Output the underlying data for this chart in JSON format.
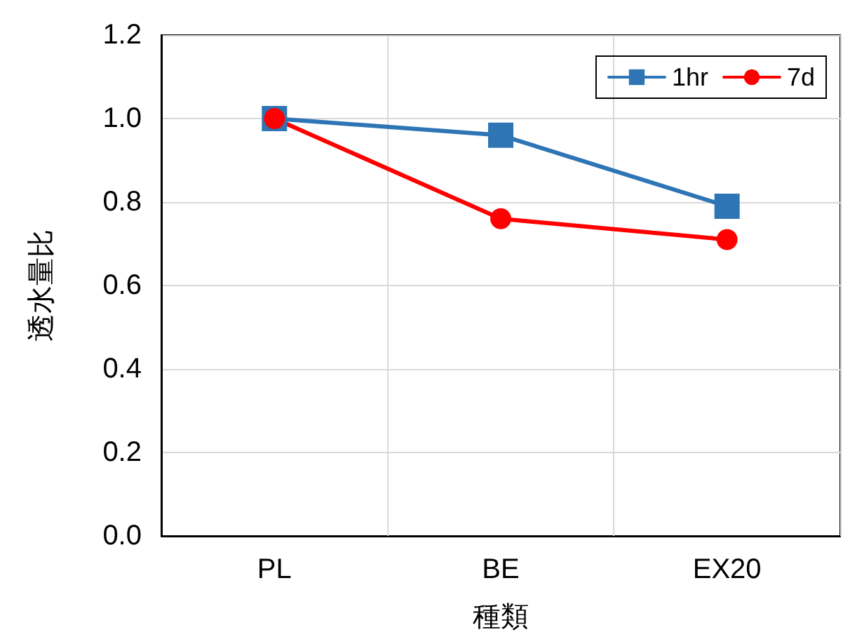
{
  "chart_data": {
    "type": "line",
    "xlabel": "種類",
    "ylabel": "透水量比",
    "categories": [
      "PL",
      "BE",
      "EX20"
    ],
    "series": [
      {
        "name": "1hr",
        "color": "#2e75b6",
        "marker": "square",
        "values": [
          1.0,
          0.96,
          0.79
        ]
      },
      {
        "name": "7d",
        "color": "#ff0000",
        "marker": "circle",
        "values": [
          1.0,
          0.76,
          0.71
        ]
      }
    ],
    "ylim": [
      0,
      1.2
    ],
    "yticks": [
      {
        "value": 0,
        "label": "0.0"
      },
      {
        "value": 0.2,
        "label": "0.2"
      },
      {
        "value": 0.4,
        "label": "0.4"
      },
      {
        "value": 0.6,
        "label": "0.6"
      },
      {
        "value": 0.8,
        "label": "0.8"
      },
      {
        "value": 1.0,
        "label": "1.0"
      },
      {
        "value": 1.2,
        "label": "1.2"
      }
    ],
    "grid": true,
    "legend": "top right",
    "line_style": "solid"
  }
}
